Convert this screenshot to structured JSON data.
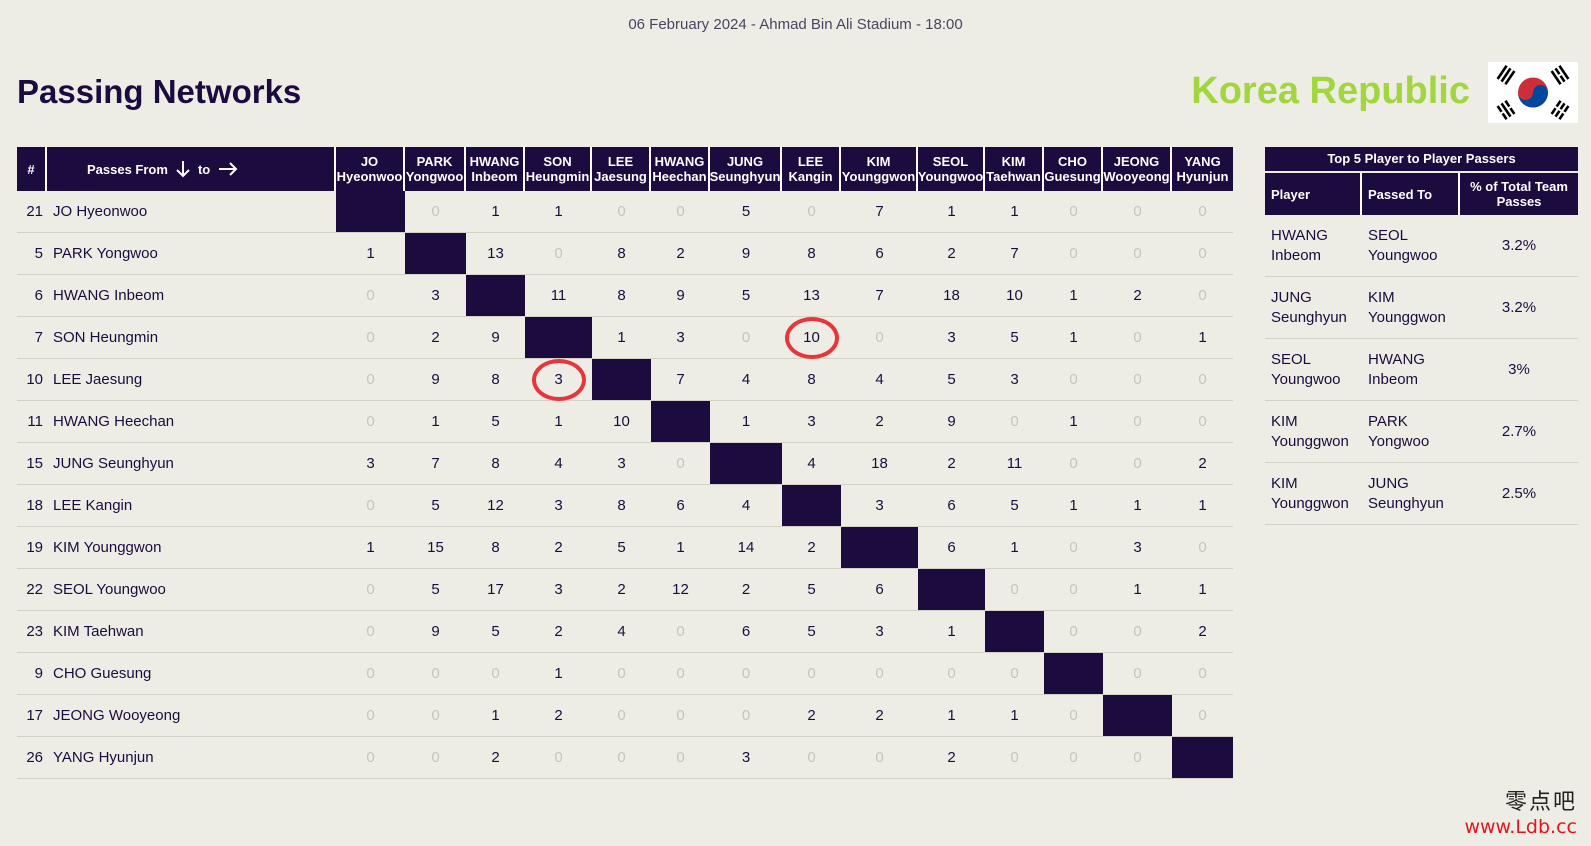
{
  "header": {
    "match_info": "06 February 2024 - Ahmad Bin Ali Stadium - 18:00",
    "title": "Passing Networks",
    "team": "Korea Republic"
  },
  "colors": {
    "primary": "#1c0b3e",
    "accent": "#a2d63e",
    "highlight": "#e8343b",
    "background": "#eeede5"
  },
  "matrix": {
    "hash_label": "#",
    "from_label": "Passes From",
    "to_label": "to",
    "columns": [
      {
        "line1": "JO",
        "line2": "Hyeonwoo"
      },
      {
        "line1": "PARK",
        "line2": "Yongwoo"
      },
      {
        "line1": "HWANG",
        "line2": "Inbeom"
      },
      {
        "line1": "SON",
        "line2": "Heungmin"
      },
      {
        "line1": "LEE",
        "line2": "Jaesung"
      },
      {
        "line1": "HWANG",
        "line2": "Heechan"
      },
      {
        "line1": "JUNG",
        "line2": "Seunghyun"
      },
      {
        "line1": "LEE",
        "line2": "Kangin"
      },
      {
        "line1": "KIM",
        "line2": "Younggwon"
      },
      {
        "line1": "SEOL",
        "line2": "Youngwoo"
      },
      {
        "line1": "KIM",
        "line2": "Taehwan"
      },
      {
        "line1": "CHO",
        "line2": "Guesung"
      },
      {
        "line1": "JEONG",
        "line2": "Wooyeong"
      },
      {
        "line1": "YANG",
        "line2": "Hyunjun"
      }
    ],
    "rows": [
      {
        "num": "21",
        "name": "JO Hyeonwoo",
        "values": [
          "",
          "0",
          "1",
          "1",
          "0",
          "0",
          "5",
          "0",
          "7",
          "1",
          "1",
          "0",
          "0",
          "0"
        ]
      },
      {
        "num": "5",
        "name": "PARK Yongwoo",
        "values": [
          "1",
          "",
          "13",
          "0",
          "8",
          "2",
          "9",
          "8",
          "6",
          "2",
          "7",
          "0",
          "0",
          "0"
        ]
      },
      {
        "num": "6",
        "name": "HWANG Inbeom",
        "values": [
          "0",
          "3",
          "",
          "11",
          "8",
          "9",
          "5",
          "13",
          "7",
          "18",
          "10",
          "1",
          "2",
          "0"
        ]
      },
      {
        "num": "7",
        "name": "SON Heungmin",
        "values": [
          "0",
          "2",
          "9",
          "",
          "1",
          "3",
          "0",
          "10",
          "0",
          "3",
          "5",
          "1",
          "0",
          "1"
        ]
      },
      {
        "num": "10",
        "name": "LEE Jaesung",
        "values": [
          "0",
          "9",
          "8",
          "3",
          "",
          "7",
          "4",
          "8",
          "4",
          "5",
          "3",
          "0",
          "0",
          "0"
        ]
      },
      {
        "num": "11",
        "name": "HWANG Heechan",
        "values": [
          "0",
          "1",
          "5",
          "1",
          "10",
          "",
          "1",
          "3",
          "2",
          "9",
          "0",
          "1",
          "0",
          "0"
        ]
      },
      {
        "num": "15",
        "name": "JUNG Seunghyun",
        "values": [
          "3",
          "7",
          "8",
          "4",
          "3",
          "0",
          "",
          "4",
          "18",
          "2",
          "11",
          "0",
          "0",
          "2"
        ]
      },
      {
        "num": "18",
        "name": "LEE Kangin",
        "values": [
          "0",
          "5",
          "12",
          "3",
          "8",
          "6",
          "4",
          "",
          "3",
          "6",
          "5",
          "1",
          "1",
          "1"
        ]
      },
      {
        "num": "19",
        "name": "KIM Younggwon",
        "values": [
          "1",
          "15",
          "8",
          "2",
          "5",
          "1",
          "14",
          "2",
          "",
          "6",
          "1",
          "0",
          "3",
          "0"
        ]
      },
      {
        "num": "22",
        "name": "SEOL Youngwoo",
        "values": [
          "0",
          "5",
          "17",
          "3",
          "2",
          "12",
          "2",
          "5",
          "6",
          "",
          "0",
          "0",
          "1",
          "1"
        ]
      },
      {
        "num": "23",
        "name": "KIM Taehwan",
        "values": [
          "0",
          "9",
          "5",
          "2",
          "4",
          "0",
          "6",
          "5",
          "3",
          "1",
          "",
          "0",
          "0",
          "2"
        ]
      },
      {
        "num": "9",
        "name": "CHO Guesung",
        "values": [
          "0",
          "0",
          "0",
          "1",
          "0",
          "0",
          "0",
          "0",
          "0",
          "0",
          "0",
          "",
          "0",
          "0"
        ]
      },
      {
        "num": "17",
        "name": "JEONG Wooyeong",
        "values": [
          "0",
          "0",
          "1",
          "2",
          "0",
          "0",
          "0",
          "2",
          "2",
          "1",
          "1",
          "0",
          "",
          "0"
        ]
      },
      {
        "num": "26",
        "name": "YANG Hyunjun",
        "values": [
          "0",
          "0",
          "2",
          "0",
          "0",
          "0",
          "3",
          "0",
          "0",
          "2",
          "0",
          "0",
          "0",
          ""
        ]
      }
    ],
    "highlighted_cells": [
      [
        3,
        7
      ],
      [
        4,
        3
      ]
    ]
  },
  "top5": {
    "title": "Top 5 Player to Player Passers",
    "headers": [
      "Player",
      "Passed To",
      "% of Total Team Passes"
    ],
    "rows": [
      {
        "player_first": "HWANG",
        "player_last": "Inbeom",
        "to_first": "SEOL",
        "to_last": "Youngwoo",
        "pct": "3.2%"
      },
      {
        "player_first": "JUNG",
        "player_last": "Seunghyun",
        "to_first": "KIM",
        "to_last": "Younggwon",
        "pct": "3.2%"
      },
      {
        "player_first": "SEOL",
        "player_last": "Youngwoo",
        "to_first": "HWANG",
        "to_last": "Inbeom",
        "pct": "3%"
      },
      {
        "player_first": "KIM",
        "player_last": "Younggwon",
        "to_first": "PARK",
        "to_last": "Yongwoo",
        "pct": "2.7%"
      },
      {
        "player_first": "KIM",
        "player_last": "Younggwon",
        "to_first": "JUNG",
        "to_last": "Seunghyun",
        "pct": "2.5%"
      }
    ]
  },
  "watermark": {
    "cn": "零点吧",
    "url": "www.Ldb.cc"
  }
}
